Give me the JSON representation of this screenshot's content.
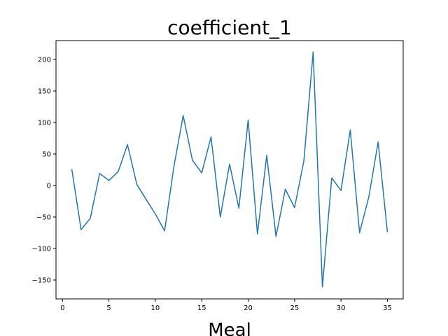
{
  "chart_data": {
    "type": "line",
    "title": "coefficient_1",
    "xlabel": "Meal",
    "ylabel": "",
    "xlim": [
      -0.7,
      36.7
    ],
    "ylim": [
      -180,
      230
    ],
    "xticks": [
      0,
      5,
      10,
      15,
      20,
      25,
      30,
      35
    ],
    "yticks": [
      -150,
      -100,
      -50,
      0,
      50,
      100,
      150,
      200
    ],
    "xtick_labels": [
      "0",
      "5",
      "10",
      "15",
      "20",
      "25",
      "30",
      "35"
    ],
    "ytick_labels": [
      "−150",
      "−100",
      "−50",
      "0",
      "50",
      "100",
      "150",
      "200"
    ],
    "grid": false,
    "series": [
      {
        "color": "#1f77b4",
        "x": [
          1,
          2,
          3,
          4,
          5,
          6,
          7,
          8,
          9,
          10,
          11,
          12,
          13,
          14,
          15,
          16,
          17,
          18,
          19,
          20,
          21,
          22,
          23,
          24,
          25,
          26,
          27,
          28,
          29,
          30,
          31,
          32,
          33,
          34,
          35
        ],
        "y": [
          26,
          -70,
          -52,
          19,
          8,
          22,
          65,
          2,
          -22,
          -45,
          -72,
          30,
          111,
          40,
          20,
          77,
          -50,
          34,
          -36,
          104,
          -77,
          48,
          -81,
          -6,
          -35,
          39,
          212,
          -161,
          12,
          -8,
          88,
          -75,
          -18,
          69,
          -74
        ]
      }
    ]
  }
}
